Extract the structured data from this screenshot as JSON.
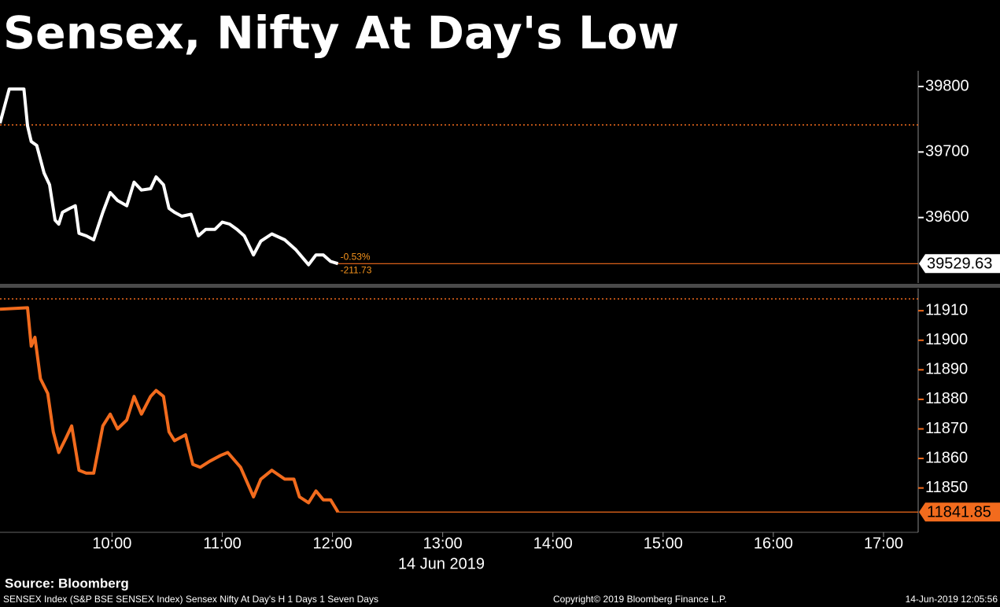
{
  "title": "Sensex, Nifty At Day's Low",
  "chart_data": [
    {
      "type": "line",
      "x": [
        "08:59",
        "09:04",
        "09:12",
        "09:14",
        "09:16",
        "09:19",
        "09:23",
        "09:26",
        "09:29",
        "09:31",
        "09:33",
        "09:37",
        "09:40",
        "09:42",
        "09:46",
        "09:50",
        "09:55",
        "09:59",
        "10:03",
        "10:08",
        "10:12",
        "10:16",
        "10:21",
        "10:24",
        "10:28",
        "10:31",
        "10:34",
        "10:38",
        "10:43",
        "10:47",
        "10:51",
        "10:56",
        "11:00",
        "11:04",
        "11:08",
        "11:12",
        "11:17",
        "11:21",
        "11:27",
        "11:34",
        "11:40",
        "11:47",
        "11:51",
        "11:55",
        "11:59",
        "12:03"
      ],
      "values": [
        39744,
        39796,
        39796,
        39740,
        39716,
        39710,
        39668,
        39650,
        39596,
        39590,
        39608,
        39614,
        39618,
        39576,
        39572,
        39566,
        39608,
        39638,
        39626,
        39618,
        39654,
        39642,
        39644,
        39662,
        39650,
        39614,
        39608,
        39602,
        39605,
        39572,
        39582,
        39582,
        39593,
        39590,
        39582,
        39572,
        39543,
        39564,
        39575,
        39566,
        39551,
        39528,
        39543,
        39543,
        39533,
        39529.63
      ],
      "color": "#ffffff",
      "xlim": [
        "08:59",
        "17:18"
      ],
      "ylim": [
        39500,
        39824
      ],
      "yticks": [
        39600,
        39700,
        39800
      ],
      "reference_line": 39741.36,
      "annotations": [
        "-0.53%",
        "-211.73"
      ]
    },
    {
      "type": "line",
      "x": [
        "08:59",
        "09:14",
        "09:16",
        "09:18",
        "09:21",
        "09:25",
        "09:28",
        "09:31",
        "09:35",
        "09:38",
        "09:42",
        "09:46",
        "09:50",
        "09:55",
        "09:59",
        "10:03",
        "10:08",
        "10:12",
        "10:16",
        "10:21",
        "10:24",
        "10:28",
        "10:31",
        "10:34",
        "10:40",
        "10:44",
        "10:48",
        "10:53",
        "10:59",
        "11:03",
        "11:10",
        "11:17",
        "11:21",
        "11:27",
        "11:34",
        "11:39",
        "11:42",
        "11:47",
        "11:51",
        "11:55",
        "11:59",
        "12:03"
      ],
      "values": [
        11910.5,
        11911,
        11898,
        11901,
        11887,
        11882,
        11869,
        11862,
        11867,
        11871,
        11856,
        11855,
        11855,
        11871,
        11875,
        11870,
        11873,
        11881,
        11875,
        11881,
        11883,
        11881,
        11869,
        11866,
        11868,
        11858,
        11857,
        11859,
        11861,
        11862,
        11857,
        11847,
        11853,
        11856,
        11853,
        11853,
        11847,
        11845,
        11849,
        11846,
        11846,
        11841.85
      ],
      "color": "#f26b1d",
      "xlim": [
        "08:59",
        "17:18"
      ],
      "xticks": [
        "10:00",
        "11:00",
        "12:00",
        "13:00",
        "14:00",
        "15:00",
        "16:00",
        "17:00"
      ],
      "x_label": "14 Jun 2019",
      "ylim": [
        11835,
        11917.5
      ],
      "yticks": [
        11850,
        11860,
        11870,
        11880,
        11890,
        11900,
        11910
      ],
      "reference_line": 11914
    }
  ],
  "source": "Source: Bloomberg",
  "footer": {
    "left": "SENSEX Index (S&P BSE SENSEX Index) Sensex Nifty At Day's H 1 Days 1 Seven Days",
    "center": "Copyright© 2019 Bloomberg Finance L.P.",
    "right": "14-Jun-2019 12:05:56"
  }
}
